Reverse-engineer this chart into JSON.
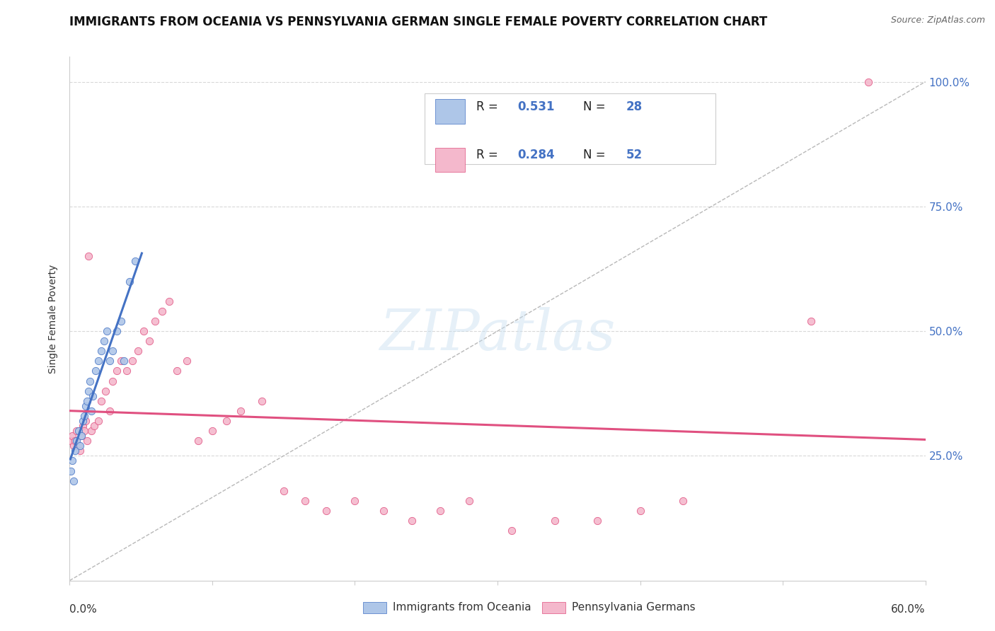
{
  "title": "IMMIGRANTS FROM OCEANIA VS PENNSYLVANIA GERMAN SINGLE FEMALE POVERTY CORRELATION CHART",
  "source": "Source: ZipAtlas.com",
  "ylabel": "Single Female Poverty",
  "legend_label1": "Immigrants from Oceania",
  "legend_label2": "Pennsylvania Germans",
  "R1": 0.531,
  "N1": 28,
  "R2": 0.284,
  "N2": 52,
  "color_blue": "#aec6e8",
  "color_pink": "#f4b8cc",
  "color_line_blue": "#4472c4",
  "color_line_pink": "#e05080",
  "color_diagonal": "#b8b8b8",
  "oceania_x": [
    0.001,
    0.002,
    0.003,
    0.004,
    0.005,
    0.006,
    0.007,
    0.008,
    0.009,
    0.01,
    0.011,
    0.012,
    0.013,
    0.014,
    0.015,
    0.016,
    0.018,
    0.02,
    0.022,
    0.024,
    0.026,
    0.028,
    0.03,
    0.033,
    0.036,
    0.038,
    0.042,
    0.046
  ],
  "oceania_y": [
    0.22,
    0.24,
    0.2,
    0.26,
    0.28,
    0.3,
    0.27,
    0.29,
    0.32,
    0.33,
    0.35,
    0.36,
    0.38,
    0.4,
    0.34,
    0.37,
    0.42,
    0.44,
    0.46,
    0.48,
    0.5,
    0.44,
    0.46,
    0.5,
    0.52,
    0.44,
    0.6,
    0.64
  ],
  "pa_x": [
    0.001,
    0.002,
    0.003,
    0.004,
    0.005,
    0.006,
    0.007,
    0.008,
    0.009,
    0.01,
    0.011,
    0.012,
    0.013,
    0.015,
    0.017,
    0.02,
    0.022,
    0.025,
    0.028,
    0.03,
    0.033,
    0.036,
    0.04,
    0.044,
    0.048,
    0.052,
    0.056,
    0.06,
    0.065,
    0.07,
    0.075,
    0.082,
    0.09,
    0.1,
    0.11,
    0.12,
    0.135,
    0.15,
    0.165,
    0.18,
    0.2,
    0.22,
    0.24,
    0.26,
    0.28,
    0.31,
    0.34,
    0.37,
    0.4,
    0.43,
    0.52,
    0.56
  ],
  "pa_y": [
    0.28,
    0.29,
    0.27,
    0.28,
    0.3,
    0.27,
    0.26,
    0.29,
    0.31,
    0.3,
    0.32,
    0.28,
    0.65,
    0.3,
    0.31,
    0.32,
    0.36,
    0.38,
    0.34,
    0.4,
    0.42,
    0.44,
    0.42,
    0.44,
    0.46,
    0.5,
    0.48,
    0.52,
    0.54,
    0.56,
    0.42,
    0.44,
    0.28,
    0.3,
    0.32,
    0.34,
    0.36,
    0.18,
    0.16,
    0.14,
    0.16,
    0.14,
    0.12,
    0.14,
    0.16,
    0.1,
    0.12,
    0.12,
    0.14,
    0.16,
    0.52,
    1.0
  ],
  "xlim": [
    0.0,
    0.6
  ],
  "ylim": [
    0.0,
    1.05
  ],
  "xticks": [
    0.0,
    0.1,
    0.2,
    0.3,
    0.4,
    0.5,
    0.6
  ],
  "yticks_right": [
    0.25,
    0.5,
    0.75,
    1.0
  ],
  "ytick_labels_right": [
    "25.0%",
    "50.0%",
    "75.0%",
    "100.0%"
  ]
}
